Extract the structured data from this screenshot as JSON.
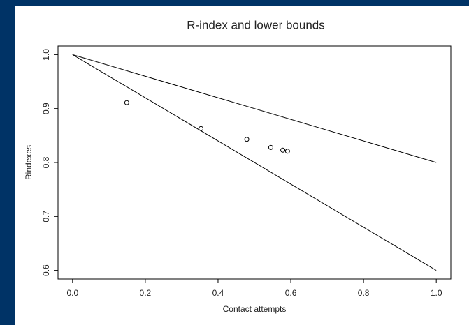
{
  "chart_data": {
    "type": "scatter",
    "title": "R-index and lower bounds",
    "xlabel": "Contact attempts",
    "ylabel": "Rindexes",
    "x": [
      0.149,
      0.353,
      0.479,
      0.545,
      0.578,
      0.591
    ],
    "values": [
      0.911,
      0.863,
      0.843,
      0.828,
      0.823,
      0.821
    ],
    "lines": [
      {
        "x": [
          0,
          1
        ],
        "values": [
          1,
          0.8
        ]
      },
      {
        "x": [
          0,
          1
        ],
        "values": [
          1,
          0.6
        ]
      }
    ],
    "color": "#000000",
    "xlim": [
      -0.04,
      1.04
    ],
    "ylim": [
      0.584,
      1.016
    ],
    "xticks": [
      {
        "value": 0,
        "label": "0.0"
      },
      0.2,
      0.4,
      0.6,
      0.8,
      {
        "value": 1,
        "label": "1.0"
      }
    ],
    "yticks": [
      0.6,
      0.7,
      0.8,
      0.9,
      {
        "value": 1,
        "label": "1.0"
      }
    ]
  }
}
